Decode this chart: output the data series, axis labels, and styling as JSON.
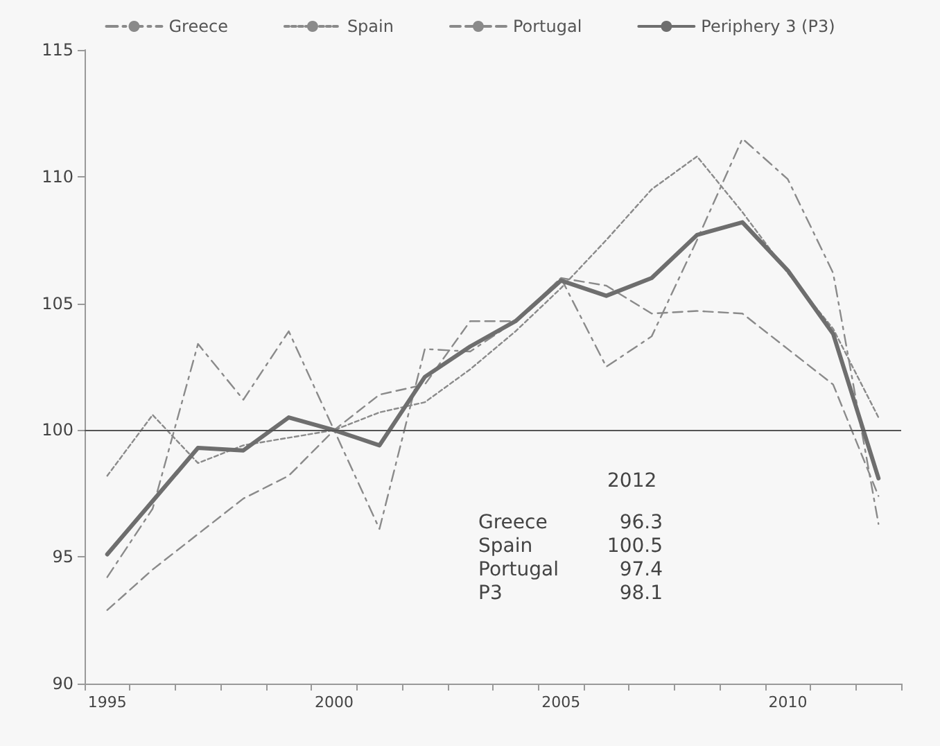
{
  "chart_data": {
    "type": "line",
    "categories": [
      "1995",
      null,
      null,
      null,
      null,
      "2000",
      null,
      null,
      null,
      null,
      "2005",
      null,
      null,
      null,
      null,
      "2010",
      null,
      null
    ],
    "series": [
      {
        "name": "Greece",
        "color": "#8a8a8a",
        "line_style": "dashdot",
        "values": [
          94.2,
          96.9,
          103.4,
          101.2,
          103.9,
          100.0,
          96.1,
          103.2,
          103.1,
          104.3,
          106.0,
          102.5,
          103.7,
          107.5,
          111.5,
          109.9,
          106.2,
          96.3
        ]
      },
      {
        "name": "Spain",
        "color": "#8a8a8a",
        "line_style": "dotted",
        "values": [
          98.2,
          100.6,
          98.7,
          99.4,
          99.7,
          100.0,
          100.7,
          101.1,
          102.4,
          103.9,
          105.6,
          107.5,
          109.5,
          110.8,
          108.6,
          106.2,
          104.0,
          100.5
        ]
      },
      {
        "name": "Portugal",
        "color": "#8a8a8a",
        "line_style": "dashed",
        "values": [
          92.9,
          94.5,
          95.9,
          97.3,
          98.2,
          100.0,
          101.4,
          101.8,
          104.3,
          104.3,
          106.0,
          105.7,
          104.6,
          104.7,
          104.6,
          103.2,
          101.8,
          97.4
        ]
      },
      {
        "name": "Periphery 3 (P3)",
        "color": "#6e6e6e",
        "line_style": "solid",
        "values": [
          95.1,
          97.2,
          99.3,
          99.2,
          100.5,
          100.0,
          99.4,
          102.1,
          103.3,
          104.3,
          105.9,
          105.3,
          106.0,
          107.7,
          108.2,
          106.3,
          103.8,
          98.1
        ]
      }
    ],
    "ylim": [
      90,
      115
    ],
    "yticks": [
      90,
      95,
      100,
      105,
      110,
      115
    ],
    "ref_lines": [
      {
        "axis": "y",
        "value": 100,
        "color": "#555555"
      }
    ],
    "annotations": [
      "2012",
      "Greece",
      "96.3",
      "Spain",
      "100.5",
      "Portugal",
      "97.4",
      "P3",
      "98.1"
    ],
    "legend": "top",
    "grid": false,
    "marker": "none"
  }
}
